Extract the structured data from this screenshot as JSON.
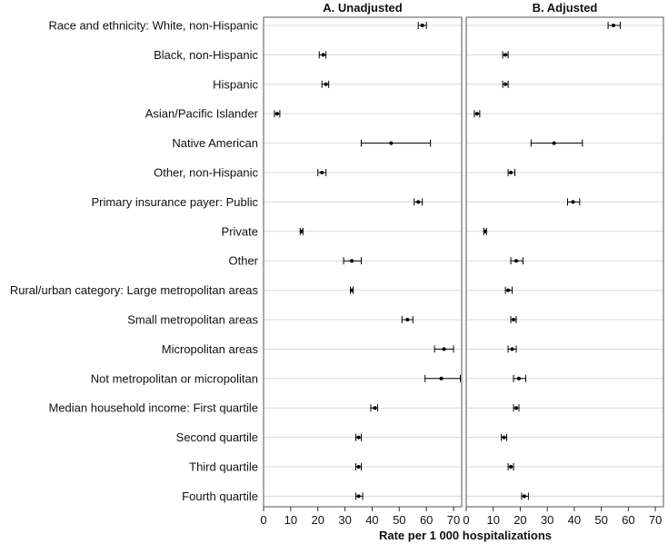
{
  "chart_data": {
    "type": "scatter",
    "panels": [
      {
        "title": "A. Unadjusted",
        "estimates": [
          58.5,
          22,
          23,
          5,
          47,
          21.5,
          57,
          14,
          32.5,
          32.5,
          53,
          66.5,
          65.5,
          41,
          35,
          35,
          35
        ],
        "ci_low": [
          57,
          20.5,
          21.5,
          4,
          36,
          20,
          55.5,
          13.5,
          29.5,
          32,
          51,
          63,
          59.5,
          39.5,
          34,
          34,
          34
        ],
        "ci_high": [
          60,
          23,
          24,
          6,
          61.5,
          23,
          58.5,
          14.5,
          36,
          33,
          55,
          70,
          72.5,
          42,
          36,
          36,
          36.5
        ]
      },
      {
        "title": "B. Adjusted",
        "estimates": [
          54.5,
          14.5,
          14.5,
          4,
          32.5,
          16.5,
          39.5,
          7,
          18.5,
          15.5,
          17.5,
          17,
          19.5,
          18.5,
          14,
          16.5,
          21.5
        ],
        "ci_low": [
          52.5,
          13.5,
          13.5,
          3,
          24,
          15.5,
          37.5,
          6.5,
          16.5,
          14.5,
          16.5,
          15.5,
          17.5,
          17.5,
          13,
          15.5,
          20.5
        ],
        "ci_high": [
          57,
          15.5,
          15.5,
          5,
          43,
          18,
          42,
          7.5,
          21,
          17,
          18.5,
          18.5,
          22,
          19.5,
          15,
          17.5,
          23
        ]
      }
    ],
    "categories": [
      "Race and ethnicity: White, non-Hispanic",
      "Black, non-Hispanic",
      "Hispanic",
      "Asian/Pacific Islander",
      "Native American",
      "Other, non-Hispanic",
      "Primary insurance payer: Public",
      "Private",
      "Other",
      "Rural/urban category: Large metropolitan areas",
      "Small metropolitan areas",
      "Micropolitan areas",
      "Not metropolitan or micropolitan",
      "Median household income: First quartile",
      "Second quartile",
      "Third quartile",
      "Fourth quartile"
    ],
    "xlabel": "Rate per 1 000 hospitalizations",
    "xlim": [
      0,
      73
    ],
    "xticks": [
      0,
      10,
      20,
      30,
      40,
      50,
      60,
      70
    ],
    "grid": true
  }
}
